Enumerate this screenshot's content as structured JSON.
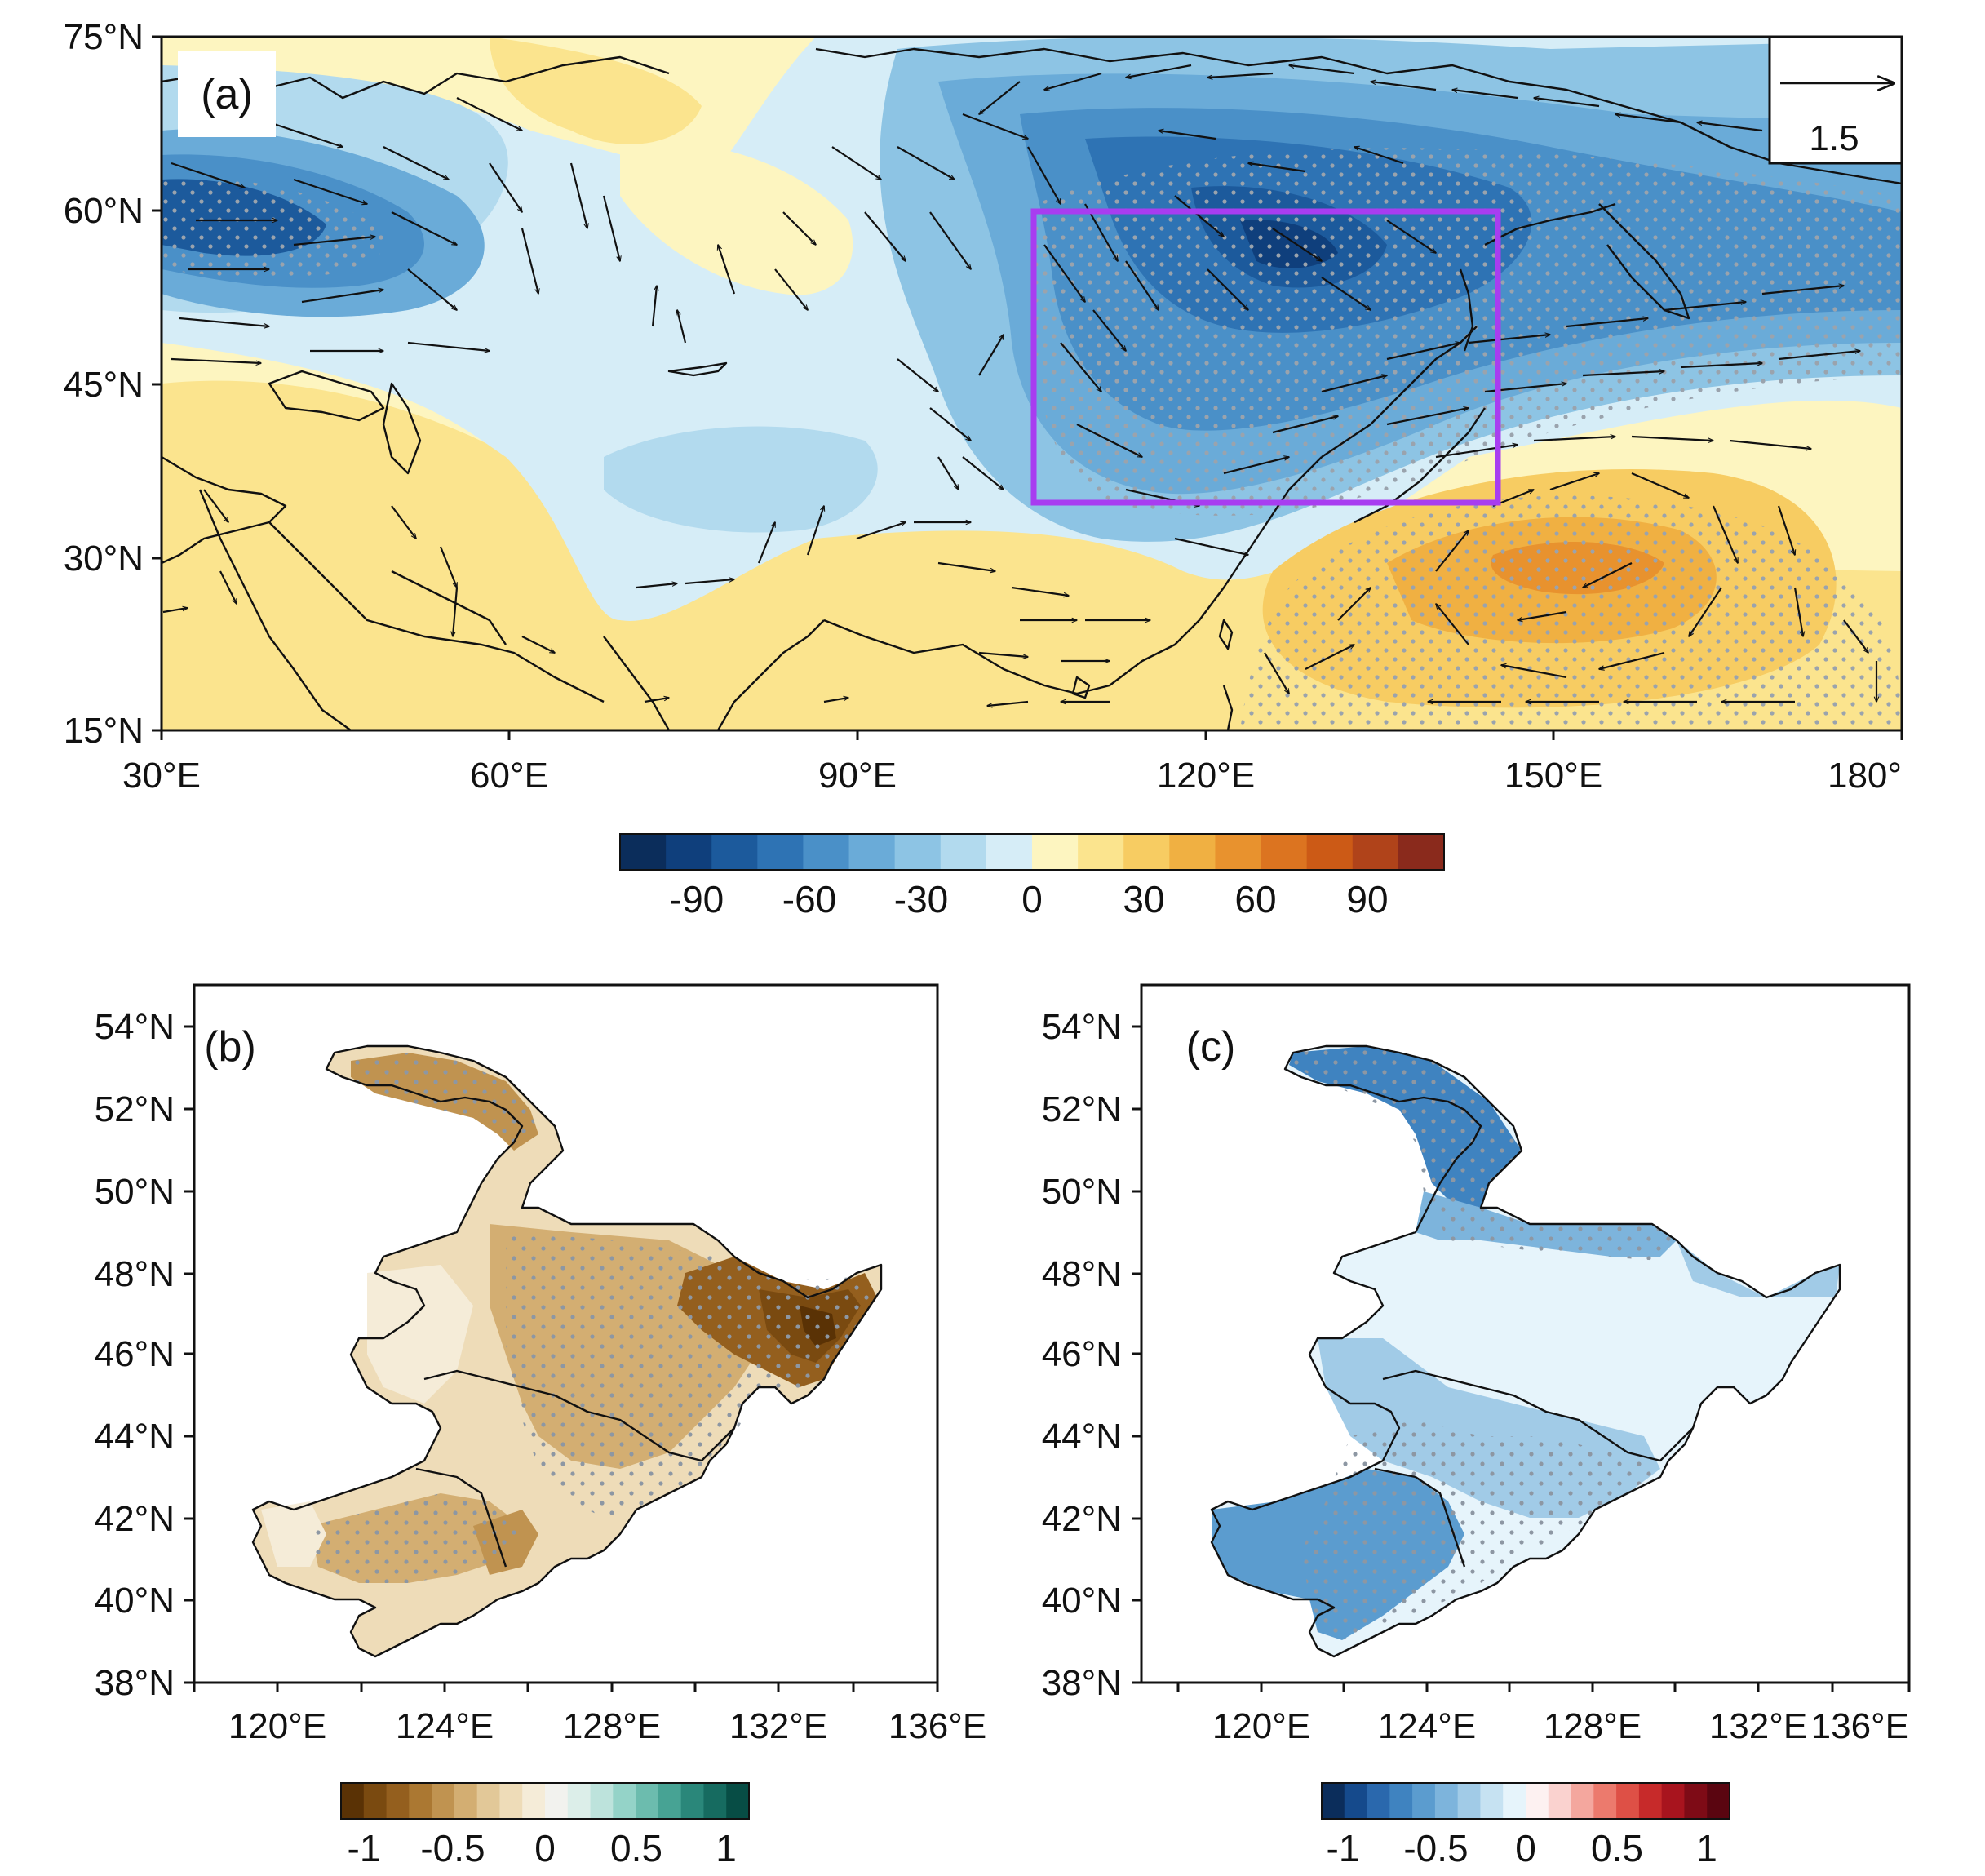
{
  "panels": {
    "a": {
      "label": "(a)",
      "lat_ticks": [
        "75°N",
        "60°N",
        "45°N",
        "30°N",
        "15°N"
      ],
      "lon_ticks": [
        "30°E",
        "60°E",
        "90°E",
        "120°E",
        "150°E",
        "180°"
      ],
      "reference_vector": "1.5",
      "highlight_box_color": "#a83df0",
      "colorbar_ticks": [
        "-90",
        "-60",
        "-30",
        "0",
        "30",
        "60",
        "90"
      ],
      "colorbar_colors": [
        "#0b2d5b",
        "#0f3f7c",
        "#1c5a9c",
        "#2e73b4",
        "#4a90c8",
        "#6aabd8",
        "#8dc4e4",
        "#b2daee",
        "#d6edf7",
        "#fdf5c0",
        "#fbe48e",
        "#f7cc62",
        "#f0b042",
        "#e8922e",
        "#dc7420",
        "#cc5a16",
        "#b0431a",
        "#8a2a1c"
      ]
    },
    "b": {
      "label": "(b)",
      "lat_ticks": [
        "54°N",
        "52°N",
        "50°N",
        "48°N",
        "46°N",
        "44°N",
        "42°N",
        "40°N",
        "38°N"
      ],
      "lon_ticks": [
        "120°E",
        "124°E",
        "128°E",
        "132°E",
        "136°E"
      ],
      "colorbar_ticks": [
        "-1",
        "-0.5",
        "0",
        "0.5",
        "1"
      ],
      "colorbar_colors": [
        "#5a3205",
        "#7a4a10",
        "#945f1e",
        "#ab7832",
        "#c09350",
        "#d3ae72",
        "#e2c898",
        "#eedcb8",
        "#f5ecd8",
        "#f2f2ee",
        "#dceee9",
        "#bde3dc",
        "#94d3c8",
        "#6cbcae",
        "#47a394",
        "#2a877a",
        "#166b60",
        "#074d45"
      ]
    },
    "c": {
      "label": "(c)",
      "lat_ticks": [
        "54°N",
        "52°N",
        "50°N",
        "48°N",
        "46°N",
        "44°N",
        "42°N",
        "40°N",
        "38°N"
      ],
      "lon_ticks": [
        "120°E",
        "124°E",
        "128°E",
        "132°E",
        "136°E"
      ],
      "colorbar_ticks": [
        "-1",
        "-0.5",
        "0",
        "0.5",
        "1"
      ],
      "colorbar_colors": [
        "#0b2d5b",
        "#154a8c",
        "#2a68ad",
        "#3f83c0",
        "#5b9ccf",
        "#7db4dc",
        "#a1cbe7",
        "#c6e2f2",
        "#e6f4fb",
        "#fdf1f1",
        "#fad2cf",
        "#f4a79e",
        "#ec7a6d",
        "#de5046",
        "#c72a2a",
        "#a8141e",
        "#7e0b16",
        "#5a0510"
      ]
    }
  }
}
